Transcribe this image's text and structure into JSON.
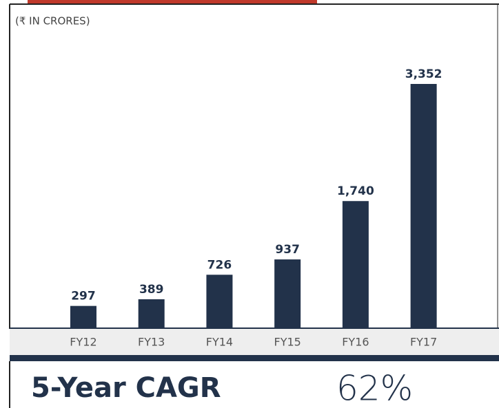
{
  "chart_data": {
    "type": "bar",
    "subtitle": "(₹ IN CRORES)",
    "categories": [
      "FY12",
      "FY13",
      "FY14",
      "FY15",
      "FY16",
      "FY17"
    ],
    "values": [
      297,
      389,
      726,
      937,
      1740,
      3352
    ],
    "value_labels": [
      "297",
      "389",
      "726",
      "937",
      "1,740",
      "3,352"
    ],
    "color": "#22324a",
    "annotations": [
      "5-Year CAGR",
      "62%"
    ]
  }
}
